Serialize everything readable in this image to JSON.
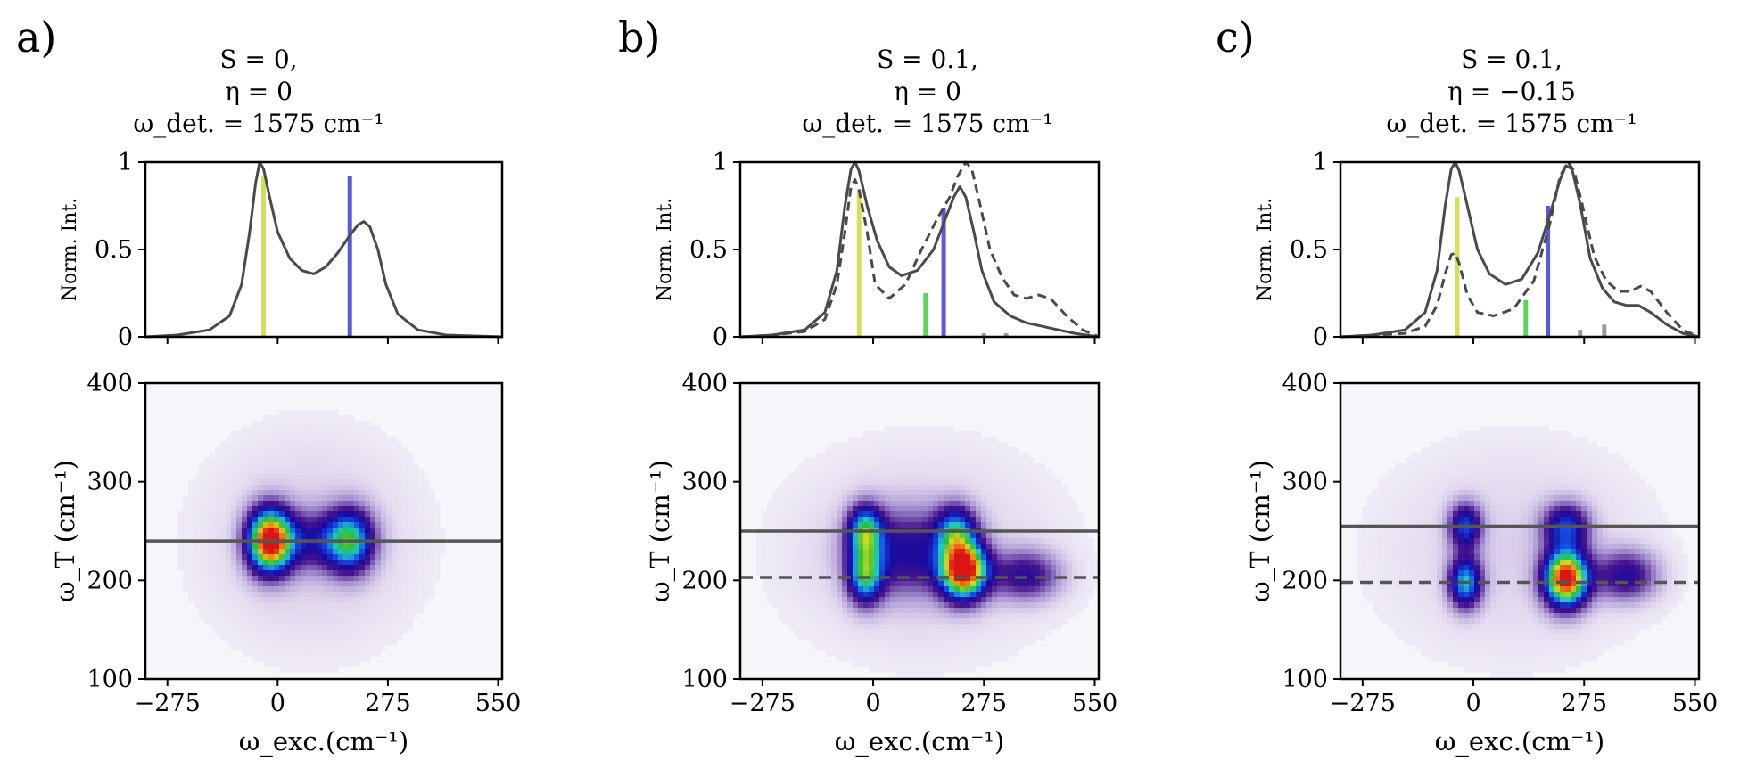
{
  "panels": [
    {
      "letter": "a)",
      "title_lines": [
        "S = 0,",
        "η = 0",
        "ω_det. = 1575 cm⁻¹"
      ]
    },
    {
      "letter": "b)",
      "title_lines": [
        "S = 0.1,",
        "η = 0",
        "ω_det. = 1575 cm⁻¹"
      ]
    },
    {
      "letter": "c)",
      "title_lines": [
        "S = 0.1,",
        "η = −0.15",
        "ω_det. = 1575 cm⁻¹"
      ]
    }
  ],
  "chart_data": [
    {
      "type": "line",
      "panel": "a",
      "ylabel": "Norm. Int.",
      "xlim": [
        -275,
        550
      ],
      "ylim": [
        0,
        1
      ],
      "x_ticks": [
        -275,
        0,
        275,
        550
      ],
      "y_ticks": [
        {
          "v": 0,
          "label": "0"
        },
        {
          "v": 0.5,
          "label": "0.5"
        },
        {
          "v": 1,
          "label": "1"
        }
      ],
      "series": [
        {
          "style": "solid",
          "color": "#4a4a4a",
          "points": [
            [
              -330,
              0.0
            ],
            [
              -250,
              0.01
            ],
            [
              -170,
              0.04
            ],
            [
              -120,
              0.12
            ],
            [
              -90,
              0.3
            ],
            [
              -70,
              0.6
            ],
            [
              -55,
              0.88
            ],
            [
              -45,
              1.0
            ],
            [
              -35,
              0.96
            ],
            [
              -20,
              0.8
            ],
            [
              0,
              0.6
            ],
            [
              30,
              0.45
            ],
            [
              60,
              0.38
            ],
            [
              90,
              0.36
            ],
            [
              120,
              0.4
            ],
            [
              150,
              0.48
            ],
            [
              180,
              0.58
            ],
            [
              200,
              0.64
            ],
            [
              215,
              0.66
            ],
            [
              230,
              0.63
            ],
            [
              250,
              0.5
            ],
            [
              270,
              0.3
            ],
            [
              300,
              0.13
            ],
            [
              350,
              0.04
            ],
            [
              420,
              0.01
            ],
            [
              560,
              0.0
            ]
          ]
        }
      ],
      "sticks": [
        {
          "x": -35,
          "value": 0.92,
          "color": "#d4de5a"
        },
        {
          "x": 180,
          "value": 0.92,
          "color": "#5a5ad6"
        }
      ]
    },
    {
      "type": "heatmap",
      "panel": "a",
      "xlabel": "ω_exc.(cm⁻¹)",
      "ylabel": "ω_T (cm⁻¹)",
      "xlim": [
        -275,
        550
      ],
      "ylim": [
        100,
        400
      ],
      "x_ticks": [
        -275,
        0,
        275,
        550
      ],
      "y_ticks": [
        100,
        200,
        300,
        400
      ],
      "peaks": [
        {
          "x": -20,
          "y": 240,
          "sx": 38,
          "sy": 22,
          "amp": 1.0
        },
        {
          "x": 180,
          "y": 240,
          "sx": 42,
          "sy": 22,
          "amp": 0.6
        },
        {
          "x": 80,
          "y": 240,
          "sx": 60,
          "sy": 20,
          "amp": 0.25
        },
        {
          "x": 80,
          "y": 240,
          "sx": 200,
          "sy": 80,
          "amp": 0.08
        }
      ],
      "hlines": [
        {
          "y": 240,
          "style": "solid"
        }
      ]
    },
    {
      "type": "line",
      "panel": "b",
      "ylabel": "Norm. Int.",
      "xlim": [
        -275,
        550
      ],
      "ylim": [
        0,
        1
      ],
      "x_ticks": [
        -275,
        0,
        275,
        550
      ],
      "y_ticks": [
        {
          "v": 0,
          "label": "0"
        },
        {
          "v": 0.5,
          "label": "0.5"
        },
        {
          "v": 1,
          "label": "1"
        }
      ],
      "series": [
        {
          "style": "solid",
          "color": "#4a4a4a",
          "points": [
            [
              -330,
              0.0
            ],
            [
              -250,
              0.01
            ],
            [
              -170,
              0.04
            ],
            [
              -120,
              0.14
            ],
            [
              -90,
              0.38
            ],
            [
              -70,
              0.75
            ],
            [
              -55,
              0.96
            ],
            [
              -45,
              1.0
            ],
            [
              -35,
              0.95
            ],
            [
              -15,
              0.75
            ],
            [
              10,
              0.55
            ],
            [
              40,
              0.4
            ],
            [
              70,
              0.35
            ],
            [
              110,
              0.38
            ],
            [
              150,
              0.5
            ],
            [
              180,
              0.68
            ],
            [
              200,
              0.8
            ],
            [
              215,
              0.86
            ],
            [
              230,
              0.8
            ],
            [
              250,
              0.6
            ],
            [
              270,
              0.38
            ],
            [
              300,
              0.2
            ],
            [
              340,
              0.12
            ],
            [
              380,
              0.08
            ],
            [
              420,
              0.06
            ],
            [
              460,
              0.04
            ],
            [
              500,
              0.02
            ],
            [
              560,
              0.0
            ]
          ]
        },
        {
          "style": "dashed",
          "color": "#4a4a4a",
          "points": [
            [
              -330,
              0.0
            ],
            [
              -250,
              0.01
            ],
            [
              -170,
              0.03
            ],
            [
              -120,
              0.1
            ],
            [
              -90,
              0.3
            ],
            [
              -70,
              0.6
            ],
            [
              -55,
              0.86
            ],
            [
              -45,
              0.9
            ],
            [
              -35,
              0.84
            ],
            [
              -15,
              0.6
            ],
            [
              5,
              0.3
            ],
            [
              40,
              0.22
            ],
            [
              80,
              0.3
            ],
            [
              120,
              0.5
            ],
            [
              160,
              0.68
            ],
            [
              190,
              0.8
            ],
            [
              210,
              0.92
            ],
            [
              230,
              1.0
            ],
            [
              245,
              0.96
            ],
            [
              265,
              0.76
            ],
            [
              290,
              0.5
            ],
            [
              320,
              0.34
            ],
            [
              350,
              0.24
            ],
            [
              380,
              0.22
            ],
            [
              410,
              0.24
            ],
            [
              440,
              0.22
            ],
            [
              480,
              0.12
            ],
            [
              520,
              0.04
            ],
            [
              560,
              0.0
            ]
          ]
        }
      ],
      "sticks": [
        {
          "x": -35,
          "value": 0.84,
          "color": "#d4de5a"
        },
        {
          "x": 130,
          "value": 0.25,
          "color": "#5ad65a"
        },
        {
          "x": 175,
          "value": 0.74,
          "color": "#5a5ad6"
        },
        {
          "x": 275,
          "value": 0.02,
          "color": "#999999"
        },
        {
          "x": 330,
          "value": 0.02,
          "color": "#999999"
        }
      ]
    },
    {
      "type": "heatmap",
      "panel": "b",
      "xlabel": "ω_exc.(cm⁻¹)",
      "ylabel": "ω_T (cm⁻¹)",
      "xlim": [
        -275,
        550
      ],
      "ylim": [
        100,
        400
      ],
      "x_ticks": [
        -275,
        0,
        275,
        550
      ],
      "y_ticks": [
        100,
        200,
        300,
        400
      ],
      "peaks": [
        {
          "x": -20,
          "y": 250,
          "sx": 30,
          "sy": 18,
          "amp": 0.55
        },
        {
          "x": -20,
          "y": 205,
          "sx": 30,
          "sy": 20,
          "amp": 0.55
        },
        {
          "x": 205,
          "y": 250,
          "sx": 35,
          "sy": 18,
          "amp": 0.45
        },
        {
          "x": 225,
          "y": 210,
          "sx": 40,
          "sy": 20,
          "amp": 1.0
        },
        {
          "x": 80,
          "y": 228,
          "sx": 90,
          "sy": 30,
          "amp": 0.3
        },
        {
          "x": 380,
          "y": 205,
          "sx": 60,
          "sy": 18,
          "amp": 0.3
        },
        {
          "x": 120,
          "y": 230,
          "sx": 260,
          "sy": 80,
          "amp": 0.07
        }
      ],
      "hlines": [
        {
          "y": 250,
          "style": "solid"
        },
        {
          "y": 203,
          "style": "dashed"
        }
      ]
    },
    {
      "type": "line",
      "panel": "c",
      "ylabel": "Norm. Int.",
      "xlim": [
        -275,
        550
      ],
      "ylim": [
        0,
        1
      ],
      "x_ticks": [
        -275,
        0,
        275,
        550
      ],
      "y_ticks": [
        {
          "v": 0,
          "label": "0"
        },
        {
          "v": 0.5,
          "label": "0.5"
        },
        {
          "v": 1,
          "label": "1"
        }
      ],
      "series": [
        {
          "style": "solid",
          "color": "#4a4a4a",
          "points": [
            [
              -330,
              0.0
            ],
            [
              -250,
              0.01
            ],
            [
              -170,
              0.04
            ],
            [
              -120,
              0.14
            ],
            [
              -90,
              0.38
            ],
            [
              -70,
              0.75
            ],
            [
              -55,
              0.96
            ],
            [
              -45,
              1.0
            ],
            [
              -35,
              0.95
            ],
            [
              -15,
              0.75
            ],
            [
              10,
              0.5
            ],
            [
              40,
              0.36
            ],
            [
              80,
              0.3
            ],
            [
              120,
              0.33
            ],
            [
              160,
              0.48
            ],
            [
              190,
              0.7
            ],
            [
              215,
              0.9
            ],
            [
              230,
              0.98
            ],
            [
              245,
              0.96
            ],
            [
              265,
              0.76
            ],
            [
              290,
              0.45
            ],
            [
              320,
              0.28
            ],
            [
              350,
              0.2
            ],
            [
              380,
              0.18
            ],
            [
              410,
              0.18
            ],
            [
              440,
              0.14
            ],
            [
              480,
              0.07
            ],
            [
              520,
              0.02
            ],
            [
              560,
              0.0
            ]
          ]
        },
        {
          "style": "dashed",
          "color": "#4a4a4a",
          "points": [
            [
              -330,
              0.0
            ],
            [
              -250,
              0.01
            ],
            [
              -170,
              0.02
            ],
            [
              -120,
              0.06
            ],
            [
              -90,
              0.18
            ],
            [
              -70,
              0.36
            ],
            [
              -55,
              0.47
            ],
            [
              -45,
              0.48
            ],
            [
              -35,
              0.42
            ],
            [
              -15,
              0.24
            ],
            [
              10,
              0.14
            ],
            [
              50,
              0.12
            ],
            [
              100,
              0.16
            ],
            [
              150,
              0.32
            ],
            [
              190,
              0.65
            ],
            [
              215,
              0.92
            ],
            [
              235,
              1.0
            ],
            [
              250,
              0.95
            ],
            [
              270,
              0.76
            ],
            [
              300,
              0.46
            ],
            [
              330,
              0.32
            ],
            [
              360,
              0.26
            ],
            [
              390,
              0.26
            ],
            [
              415,
              0.29
            ],
            [
              440,
              0.26
            ],
            [
              480,
              0.14
            ],
            [
              520,
              0.04
            ],
            [
              560,
              0.0
            ]
          ]
        }
      ],
      "sticks": [
        {
          "x": -40,
          "value": 0.8,
          "color": "#d4de5a"
        },
        {
          "x": 130,
          "value": 0.21,
          "color": "#5ad65a"
        },
        {
          "x": 185,
          "value": 0.75,
          "color": "#5a5ad6"
        },
        {
          "x": 265,
          "value": 0.04,
          "color": "#999999"
        },
        {
          "x": 325,
          "value": 0.07,
          "color": "#999999"
        }
      ]
    },
    {
      "type": "heatmap",
      "panel": "c",
      "xlabel": "ω_exc.(cm⁻¹)",
      "ylabel": "ω_T (cm⁻¹)",
      "xlim": [
        -275,
        550
      ],
      "ylim": [
        100,
        400
      ],
      "x_ticks": [
        -275,
        0,
        275,
        550
      ],
      "y_ticks": [
        100,
        200,
        300,
        400
      ],
      "peaks": [
        {
          "x": -20,
          "y": 255,
          "sx": 28,
          "sy": 16,
          "amp": 0.42
        },
        {
          "x": -20,
          "y": 198,
          "sx": 28,
          "sy": 18,
          "amp": 0.55
        },
        {
          "x": 230,
          "y": 255,
          "sx": 40,
          "sy": 16,
          "amp": 0.4
        },
        {
          "x": 230,
          "y": 202,
          "sx": 38,
          "sy": 20,
          "amp": 1.0
        },
        {
          "x": 380,
          "y": 205,
          "sx": 55,
          "sy": 18,
          "amp": 0.32
        },
        {
          "x": 100,
          "y": 230,
          "sx": 250,
          "sy": 80,
          "amp": 0.07
        }
      ],
      "hlines": [
        {
          "y": 255,
          "style": "solid"
        },
        {
          "y": 198,
          "style": "dashed"
        }
      ]
    }
  ]
}
